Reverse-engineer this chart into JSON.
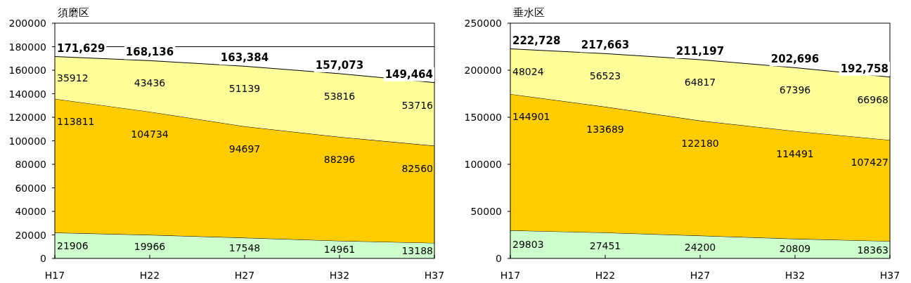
{
  "chart_data": [
    {
      "type": "area",
      "title": "須磨区",
      "stacked": true,
      "data_labels": true,
      "categories": [
        "H17",
        "H22",
        "H27",
        "H32",
        "H37"
      ],
      "ylim": [
        0,
        200000
      ],
      "yticks": [
        0,
        20000,
        40000,
        60000,
        80000,
        100000,
        120000,
        140000,
        160000,
        180000,
        200000
      ],
      "series": [
        {
          "color": "#ccffcc",
          "values": [
            21906,
            19966,
            17548,
            14961,
            13188
          ]
        },
        {
          "color": "#ffcc00",
          "values": [
            113811,
            104734,
            94697,
            88296,
            82560
          ]
        },
        {
          "color": "#ffff99",
          "values": [
            35912,
            43436,
            51139,
            53816,
            53716
          ]
        }
      ],
      "totals": [
        "171,629",
        "168,136",
        "163,384",
        "157,073",
        "149,464"
      ],
      "ref_lines": [
        {
          "axis": "y",
          "value": 180000,
          "color": "#000000"
        }
      ]
    },
    {
      "type": "area",
      "title": "垂水区",
      "stacked": true,
      "data_labels": true,
      "categories": [
        "H17",
        "H22",
        "H27",
        "H32",
        "H37"
      ],
      "ylim": [
        0,
        250000
      ],
      "yticks": [
        0,
        50000,
        100000,
        150000,
        200000,
        250000
      ],
      "series": [
        {
          "color": "#ccffcc",
          "values": [
            29803,
            27451,
            24200,
            20809,
            18363
          ]
        },
        {
          "color": "#ffcc00",
          "values": [
            144901,
            133689,
            122180,
            114491,
            107427
          ]
        },
        {
          "color": "#ffff99",
          "values": [
            48024,
            56523,
            64817,
            67396,
            66968
          ]
        }
      ],
      "totals": [
        "222,728",
        "217,663",
        "211,197",
        "202,696",
        "192,758"
      ]
    }
  ]
}
